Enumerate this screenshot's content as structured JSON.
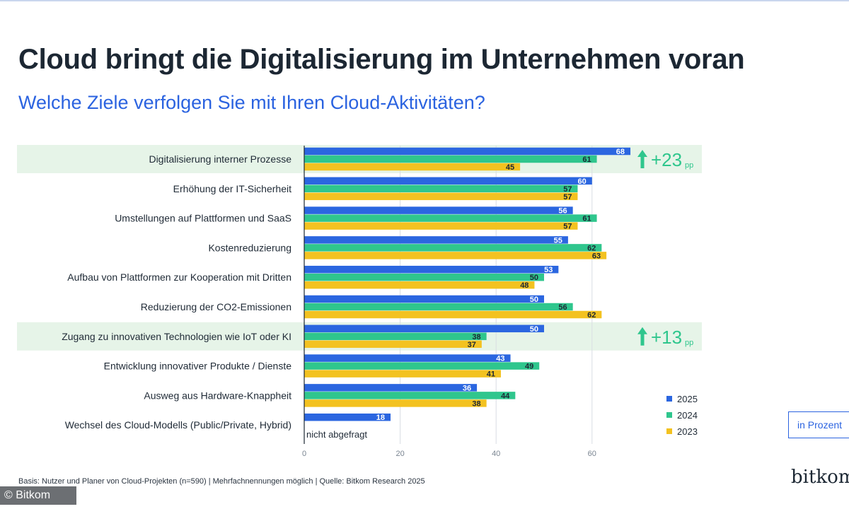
{
  "title": "Cloud bringt die Digitalisierung im Unternehmen voran",
  "subtitle": "Welche Ziele verfolgen Sie mit Ihren Cloud-Aktivitäten?",
  "footnote": "Basis: Nutzer und Planer von Cloud-Projekten (n=590) | Mehrfachnennungen möglich | Quelle: Bitkom Research 2025",
  "copyright": "© Bitkom",
  "brand": "bitkom",
  "unit_label": "in Prozent",
  "not_asked_label": "nicht abgefragt",
  "colors": {
    "2025": "#2b66e0",
    "2024": "#2fc68d",
    "2023": "#f3c220",
    "highlight": "#e6f4e8",
    "arrow": "#2fc68d"
  },
  "chart_data": {
    "type": "bar",
    "orientation": "horizontal",
    "categories": [
      "Digitalisierung interner Prozesse",
      "Erhöhung der IT-Sicherheit",
      "Umstellungen auf Plattformen und SaaS",
      "Kostenreduzierung",
      "Aufbau von Plattformen zur Kooperation mit Dritten",
      "Reduzierung der CO2-Emissionen",
      "Zugang zu innovativen Technologien wie IoT oder KI",
      "Entwicklung innovativer Produkte / Dienste",
      "Ausweg aus Hardware-Knappheit",
      "Wechsel des Cloud-Modells (Public/Private, Hybrid)"
    ],
    "series": [
      {
        "name": "2025",
        "values": [
          68,
          60,
          56,
          55,
          53,
          50,
          50,
          43,
          36,
          18
        ]
      },
      {
        "name": "2024",
        "values": [
          61,
          57,
          61,
          62,
          50,
          56,
          38,
          49,
          44,
          null
        ]
      },
      {
        "name": "2023",
        "values": [
          45,
          57,
          57,
          63,
          48,
          62,
          37,
          41,
          38,
          null
        ]
      }
    ],
    "highlights": [
      {
        "category_index": 0,
        "delta": "+23",
        "unit": "pp"
      },
      {
        "category_index": 6,
        "delta": "+13",
        "unit": "pp"
      }
    ],
    "xlim": [
      0,
      70
    ],
    "xticks": [
      0,
      20,
      40,
      60
    ],
    "grid": true,
    "legend_position": "bottom-right"
  }
}
